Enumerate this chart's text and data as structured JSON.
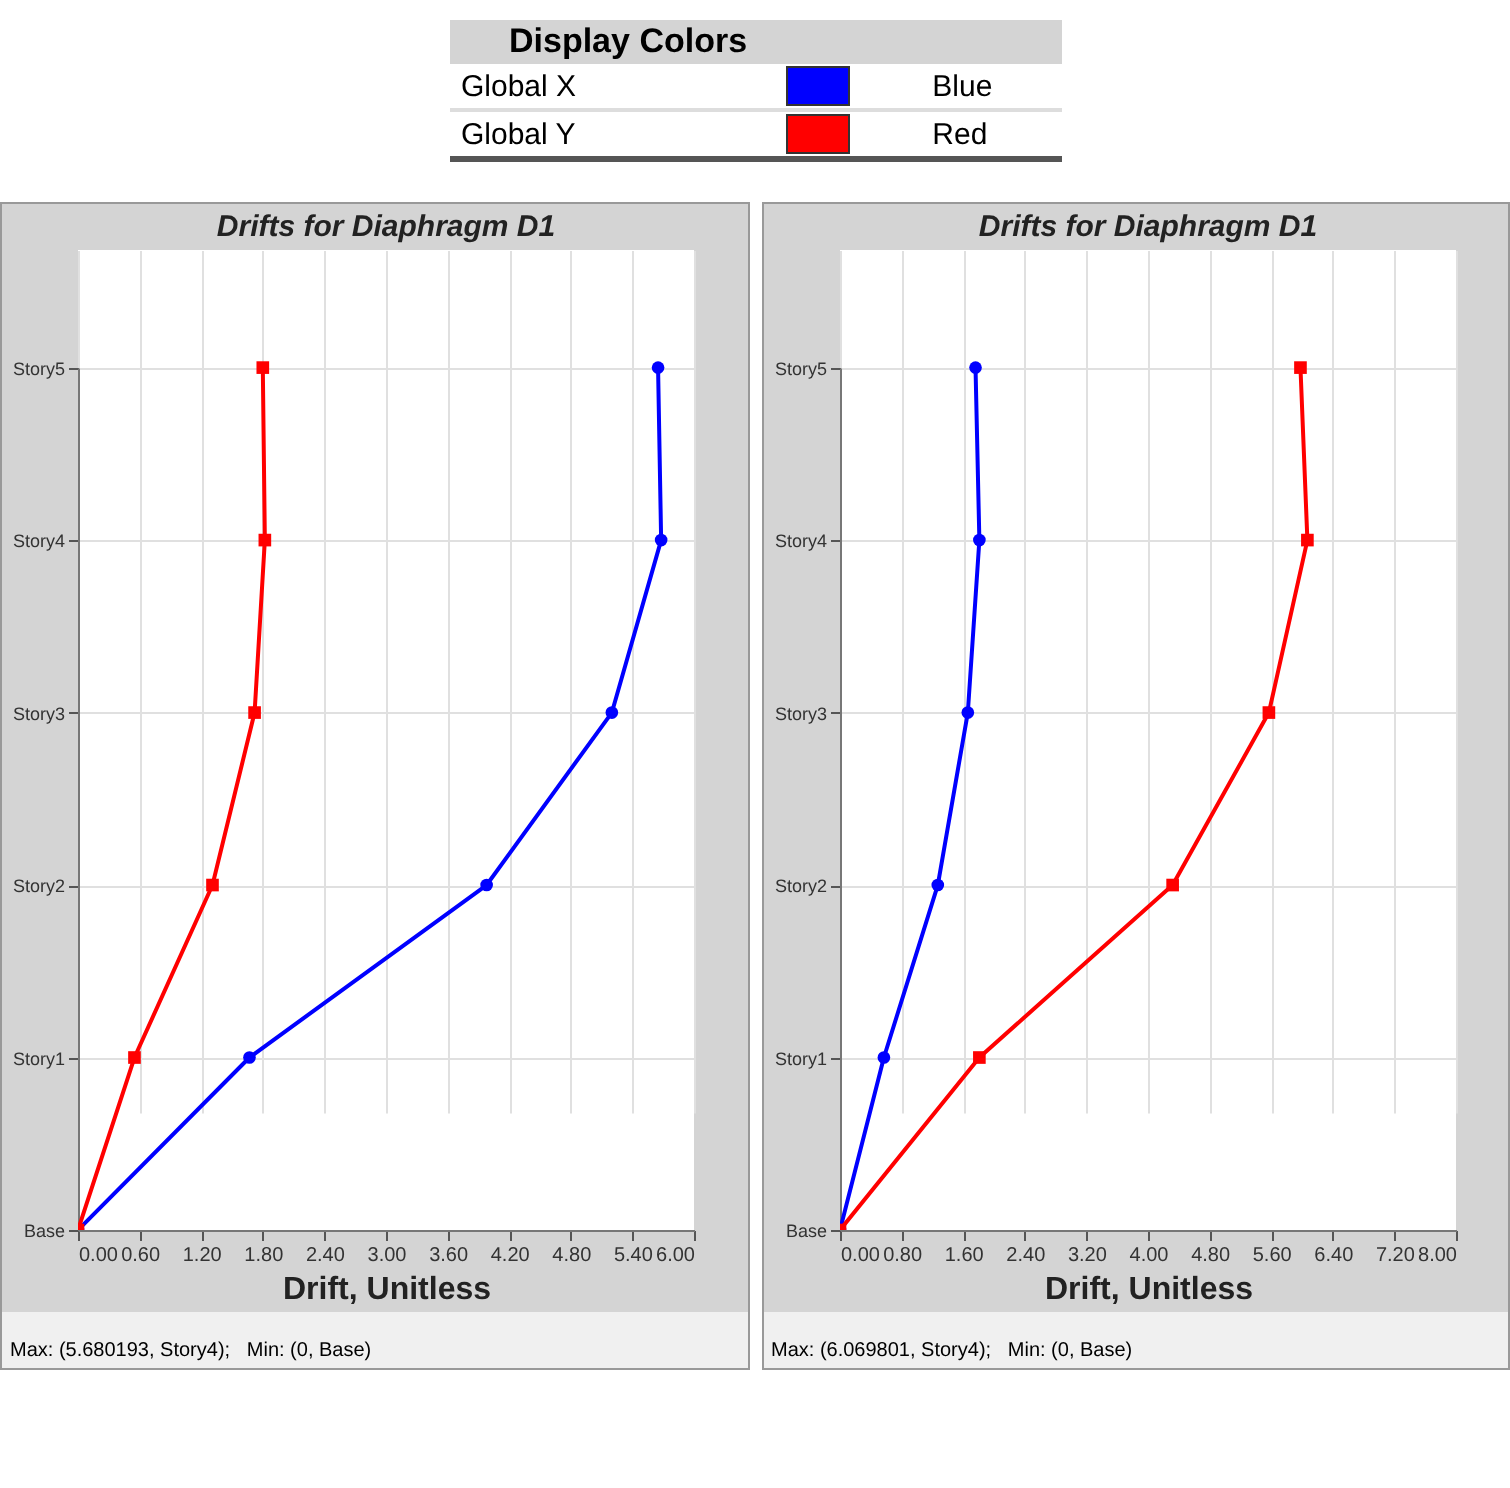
{
  "chart_data": [
    {
      "type": "line",
      "orientation": "horizontal",
      "title": "Drifts for Diaphragm D1",
      "xlabel": "Drift, Unitless",
      "legend_title": "Display Colors",
      "legend": "top",
      "grid": true,
      "categories": [
        "Story5",
        "Story4",
        "Story3",
        "Story2",
        "Story1",
        "Base"
      ],
      "series": [
        {
          "name": "Global X",
          "color": "#0000ff",
          "marker": "circle",
          "values": [
            5.65,
            5.68,
            5.2,
            3.98,
            1.67,
            0
          ]
        },
        {
          "name": "Global Y",
          "color": "#ff0000",
          "marker": "square",
          "values": [
            1.8,
            1.82,
            1.72,
            1.31,
            0.55,
            0
          ]
        }
      ],
      "xlim": [
        0,
        6
      ],
      "xticks": [
        {
          "value": 0,
          "label": "0.00"
        },
        {
          "value": 0.6,
          "label": "0.60"
        },
        {
          "value": 1.2,
          "label": "1.20"
        },
        {
          "value": 1.8,
          "label": "1.80"
        },
        {
          "value": 2.4,
          "label": "2.40"
        },
        {
          "value": 3,
          "label": "3.00"
        },
        {
          "value": 3.6,
          "label": "3.60"
        },
        {
          "value": 4.2,
          "label": "4.20"
        },
        {
          "value": 4.8,
          "label": "4.80"
        },
        {
          "value": 5.4,
          "label": "5.40"
        },
        {
          "value": 6,
          "label": "6.00"
        }
      ],
      "annotations": [
        "Blue",
        "Red",
        "Max: (5.680193, Story4);   Min: (0, Base)"
      ]
    },
    {
      "type": "line",
      "orientation": "horizontal",
      "title": "Drifts for Diaphragm D1",
      "xlabel": "Drift, Unitless",
      "grid": true,
      "categories": [
        "Story5",
        "Story4",
        "Story3",
        "Story2",
        "Story1",
        "Base"
      ],
      "series": [
        {
          "color": "#0000ff",
          "marker": "circle",
          "values": [
            1.76,
            1.81,
            1.66,
            1.27,
            0.57,
            0
          ]
        },
        {
          "color": "#ff0000",
          "marker": "square",
          "values": [
            5.98,
            6.07,
            5.57,
            4.32,
            1.81,
            0
          ]
        }
      ],
      "xlim": [
        0,
        8
      ],
      "xticks": [
        {
          "value": 0,
          "label": "0.00"
        },
        {
          "value": 0.8,
          "label": "0.80"
        },
        {
          "value": 1.6,
          "label": "1.60"
        },
        {
          "value": 2.4,
          "label": "2.40"
        },
        {
          "value": 3.2,
          "label": "3.20"
        },
        {
          "value": 4,
          "label": "4.00"
        },
        {
          "value": 4.8,
          "label": "4.80"
        },
        {
          "value": 5.6,
          "label": "5.60"
        },
        {
          "value": 6.4,
          "label": "6.40"
        },
        {
          "value": 7.2,
          "label": "7.20"
        },
        {
          "value": 8,
          "label": "8.00"
        }
      ],
      "annotations": [
        "Max: (6.069801, Story4);   Min: (0, Base)"
      ]
    }
  ]
}
